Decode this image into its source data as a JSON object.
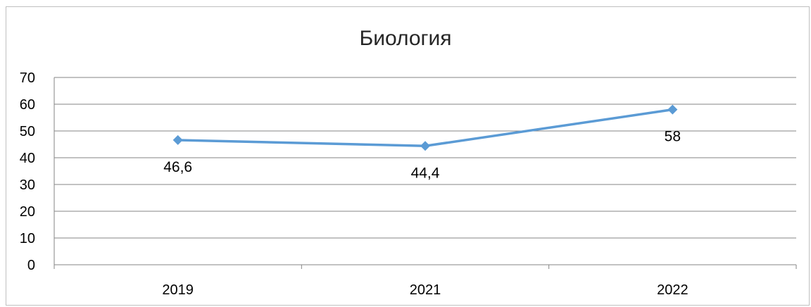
{
  "chart_data": {
    "type": "line",
    "title": "Биология",
    "categories": [
      "2019",
      "2021",
      "2022"
    ],
    "series": [
      {
        "values": [
          46.6,
          44.4,
          58
        ],
        "labels": [
          "46,6",
          "44,4",
          "58"
        ]
      }
    ],
    "ylim": [
      0,
      70
    ],
    "yticks": [
      "0",
      "10",
      "20",
      "30",
      "40",
      "50",
      "60",
      "70"
    ],
    "grid": true,
    "legend": "none",
    "colors": {
      "line": "#5b9bd5",
      "grid": "#868686",
      "axis": "#868686"
    }
  }
}
